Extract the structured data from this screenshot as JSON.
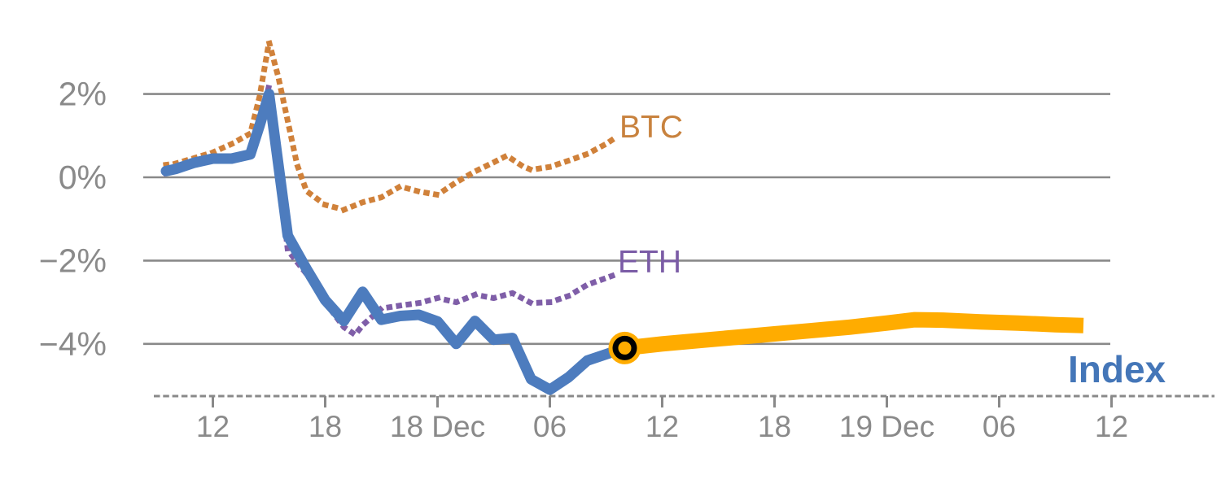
{
  "chart_data": {
    "type": "line",
    "title": "",
    "description": "Intraday percentage performance of BTC, ETH (dotted) and an Index (solid blue history, thick amber continuation after a circled transition point)",
    "x_axis": {
      "unit": "hours (Dec 17 - Dec 19, hour 0 = Dec 17 00:00)",
      "ticks": [
        {
          "h": 12,
          "label": "12"
        },
        {
          "h": 18,
          "label": "18"
        },
        {
          "h": 24,
          "label": "18 Dec"
        },
        {
          "h": 30,
          "label": "06"
        },
        {
          "h": 36,
          "label": "12"
        },
        {
          "h": 42,
          "label": "18"
        },
        {
          "h": 48,
          "label": "19 Dec"
        },
        {
          "h": 54,
          "label": "06"
        },
        {
          "h": 60,
          "label": "12"
        }
      ],
      "axis_style": "dashed minor-tick baseline with major ticks every 6 hours",
      "range_hours": [
        9,
        61.5
      ]
    },
    "y_axis": {
      "unit": "percent change",
      "ticks": [
        {
          "v": 2,
          "label": "2%"
        },
        {
          "v": 0,
          "label": "0%"
        },
        {
          "v": -2,
          "label": "−2%"
        },
        {
          "v": -4,
          "label": "−4%"
        }
      ],
      "range": [
        -5.6,
        3.6
      ],
      "grid": true
    },
    "legend_position": "inline end-of-line labels",
    "series": [
      {
        "name": "BTC",
        "style": "dotted",
        "color": "#D0813A",
        "points": [
          [
            9.5,
            0.3
          ],
          [
            10,
            0.33
          ],
          [
            11,
            0.46
          ],
          [
            12,
            0.6
          ],
          [
            13,
            0.8
          ],
          [
            14,
            1.05
          ],
          [
            14.5,
            1.95
          ],
          [
            15,
            3.25
          ],
          [
            15.5,
            2.4
          ],
          [
            16,
            1.35
          ],
          [
            16.5,
            0.3
          ],
          [
            17,
            -0.33
          ],
          [
            18,
            -0.66
          ],
          [
            19,
            -0.78
          ],
          [
            20,
            -0.6
          ],
          [
            21,
            -0.48
          ],
          [
            22,
            -0.22
          ],
          [
            23,
            -0.34
          ],
          [
            24,
            -0.42
          ],
          [
            25,
            -0.12
          ],
          [
            26,
            0.14
          ],
          [
            27,
            0.36
          ],
          [
            27.7,
            0.52
          ],
          [
            28.5,
            0.28
          ],
          [
            29,
            0.18
          ],
          [
            30,
            0.25
          ],
          [
            31,
            0.4
          ],
          [
            32,
            0.56
          ],
          [
            33,
            0.8
          ],
          [
            33.6,
            0.98
          ]
        ]
      },
      {
        "name": "ETH",
        "style": "dotted",
        "color": "#7F5EA8",
        "points": [
          [
            9.5,
            0.1
          ],
          [
            10,
            0.15
          ],
          [
            11,
            0.3
          ],
          [
            12,
            0.4
          ],
          [
            13,
            0.42
          ],
          [
            14,
            0.52
          ],
          [
            14.5,
            1.25
          ],
          [
            15,
            2.2
          ],
          [
            16,
            -1.75
          ],
          [
            17,
            -2.32
          ],
          [
            18,
            -3.0
          ],
          [
            19,
            -3.6
          ],
          [
            19.6,
            -3.78
          ],
          [
            20,
            -3.55
          ],
          [
            21,
            -3.15
          ],
          [
            22,
            -3.08
          ],
          [
            23,
            -3.02
          ],
          [
            24,
            -2.9
          ],
          [
            25,
            -3.0
          ],
          [
            26,
            -2.82
          ],
          [
            27,
            -2.9
          ],
          [
            28,
            -2.78
          ],
          [
            29,
            -3.02
          ],
          [
            30,
            -3.0
          ],
          [
            31,
            -2.85
          ],
          [
            32,
            -2.58
          ],
          [
            33,
            -2.42
          ],
          [
            33.6,
            -2.32
          ]
        ]
      },
      {
        "name": "Index",
        "style": "solid",
        "color": "#4D7CBE",
        "points": [
          [
            9.5,
            0.15
          ],
          [
            10,
            0.2
          ],
          [
            11,
            0.35
          ],
          [
            12,
            0.45
          ],
          [
            13,
            0.45
          ],
          [
            14,
            0.55
          ],
          [
            14.5,
            1.25
          ],
          [
            15,
            2.0
          ],
          [
            16,
            -1.4
          ],
          [
            17,
            -2.2
          ],
          [
            18,
            -2.95
          ],
          [
            19,
            -3.45
          ],
          [
            20,
            -2.75
          ],
          [
            21,
            -3.42
          ],
          [
            22,
            -3.33
          ],
          [
            23,
            -3.3
          ],
          [
            24,
            -3.46
          ],
          [
            25,
            -4.0
          ],
          [
            26,
            -3.45
          ],
          [
            27,
            -3.9
          ],
          [
            28,
            -3.86
          ],
          [
            29,
            -4.85
          ],
          [
            30,
            -5.1
          ],
          [
            31,
            -4.8
          ],
          [
            32,
            -4.4
          ],
          [
            33,
            -4.25
          ],
          [
            34,
            -4.1
          ]
        ]
      },
      {
        "name": "Index continuation",
        "style": "solid-thick",
        "color": "#FFAC00",
        "points": [
          [
            34,
            -4.1
          ],
          [
            36,
            -4.0
          ],
          [
            38,
            -3.92
          ],
          [
            40,
            -3.84
          ],
          [
            42,
            -3.76
          ],
          [
            44,
            -3.68
          ],
          [
            46,
            -3.6
          ],
          [
            48,
            -3.5
          ],
          [
            49.5,
            -3.42
          ],
          [
            51,
            -3.43
          ],
          [
            53,
            -3.47
          ],
          [
            55,
            -3.5
          ],
          [
            57,
            -3.54
          ],
          [
            58.5,
            -3.56
          ]
        ]
      }
    ],
    "marker": {
      "h": 34,
      "v": -4.1,
      "shape": "circle, amber fill with black ring",
      "meaning": "transition point between Index history and continuation"
    }
  },
  "labels": {
    "btc": "BTC",
    "eth": "ETH",
    "index": "Index"
  },
  "colors": {
    "btc_line": "#D0813A",
    "btc_label": "#C8823E",
    "eth_line": "#7F5EA8",
    "eth_label": "#7B5CA6",
    "index_line": "#4D7CBE",
    "index_label": "#4476B8",
    "forecast_line": "#FFAC00",
    "marker_ring": "#000000",
    "grid": "#898989",
    "tick_text": "#8A8A8A",
    "background": "#FFFFFF"
  }
}
